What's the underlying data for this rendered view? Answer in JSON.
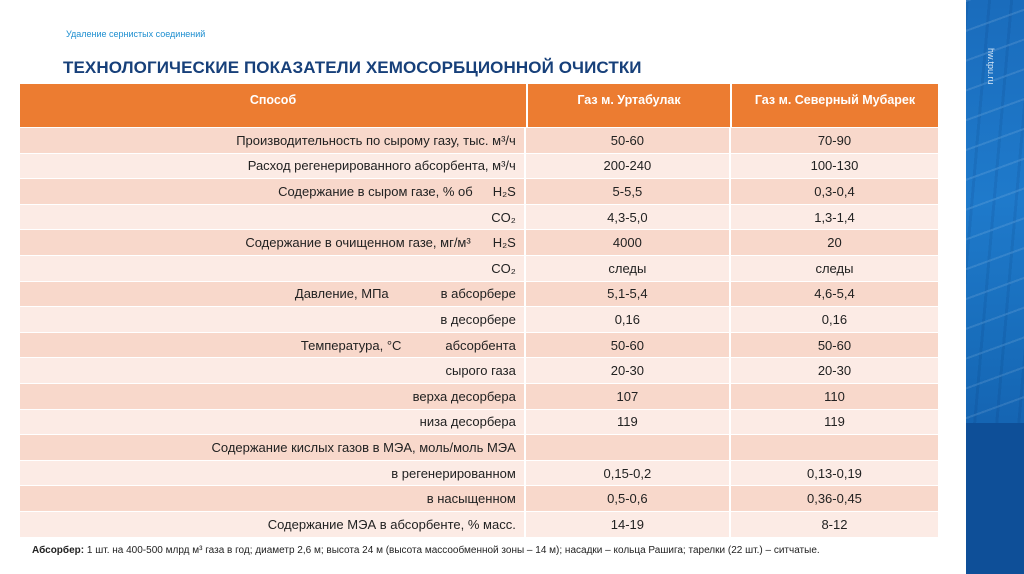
{
  "subtitle": "Удаление сернистых соединений",
  "title": "ТЕХНОЛОГИЧЕСКИЕ ПОКАЗАТЕЛИ ХЕМОСОРБЦИОННОЙ ОЧИСТКИ",
  "side_url": "hw.tpu.ru",
  "colors": {
    "header": "#ec7c31",
    "row_odd": "#f8d8cb",
    "row_even": "#fcebe5",
    "title": "#17407a",
    "side_panel": "#1a6cbc"
  },
  "table": {
    "headers": [
      "Способ",
      "Газ м. Уртабулак",
      "Газ м. Северный Мубарек"
    ],
    "rows": [
      {
        "label": "Производительность по сырому газу, тыс. м³/ч",
        "sub": "",
        "v1": "50-60",
        "v2": "70-90"
      },
      {
        "label": "Расход регенерированного абсорбента, м³/ч",
        "sub": "",
        "v1": "200-240",
        "v2": "100-130"
      },
      {
        "label": "Содержание в сыром газе, % об",
        "sub": "H₂S",
        "v1": "5-5,5",
        "v2": "0,3-0,4"
      },
      {
        "label": "",
        "sub": "CO₂",
        "v1": "4,3-5,0",
        "v2": "1,3-1,4"
      },
      {
        "label": "Содержание в очищенном газе, мг/м³",
        "sub": "H₂S",
        "v1": "4000",
        "v2": "20"
      },
      {
        "label": "",
        "sub": "CO₂",
        "v1": "следы",
        "v2": "следы"
      },
      {
        "label": "Давление, МПа",
        "sub": "в абсорбере",
        "v1": "5,1-5,4",
        "v2": "4,6-5,4"
      },
      {
        "label": "",
        "sub": "в десорбере",
        "v1": "0,16",
        "v2": "0,16"
      },
      {
        "label": "Температура, °С",
        "sub": "абсорбента",
        "v1": "50-60",
        "v2": "50-60"
      },
      {
        "label": "",
        "sub": "сырого газа",
        "v1": "20-30",
        "v2": "20-30"
      },
      {
        "label": "",
        "sub": "верха десорбера",
        "v1": "107",
        "v2": "110"
      },
      {
        "label": "",
        "sub": "низа десорбера",
        "v1": "119",
        "v2": "119"
      },
      {
        "label": "Содержание кислых газов в МЭА, моль/моль МЭА",
        "sub": "",
        "v1": "",
        "v2": ""
      },
      {
        "label": "",
        "sub": "в регенерированном",
        "v1": "0,15-0,2",
        "v2": "0,13-0,19"
      },
      {
        "label": "",
        "sub": "в насыщенном",
        "v1": "0,5-0,6",
        "v2": "0,36-0,45"
      },
      {
        "label": "Содержание МЭА в абсорбенте, % масс.",
        "sub": "",
        "v1": "14-19",
        "v2": "8-12"
      }
    ]
  },
  "footer": {
    "bold": "Абсорбер:",
    "text": " 1 шт. на 400-500 млрд м³ газа в год; диаметр 2,6 м; высота 24 м (высота массообменной зоны – 14 м); насадки – кольца Рашига; тарелки (22 шт.) – ситчатые."
  }
}
